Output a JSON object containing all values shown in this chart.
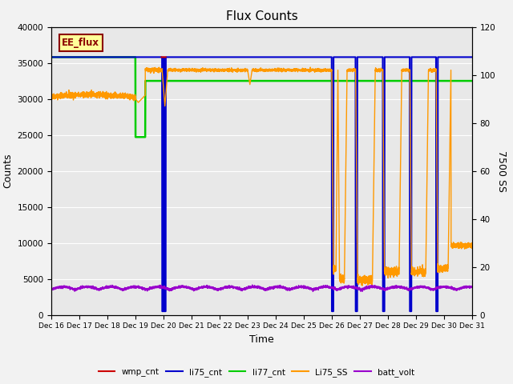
{
  "title": "Flux Counts",
  "xlabel": "Time",
  "ylabel_left": "Counts",
  "ylabel_right": "7500 SS",
  "ylim_left": [
    0,
    40000
  ],
  "ylim_right": [
    0,
    120
  ],
  "background_color": "#e8e8e8",
  "annotation_text": "EE_flux",
  "annotation_color": "#8B0000",
  "annotation_bg": "#ffff99",
  "xtick_labels": [
    "Dec 16",
    "Dec 17",
    "Dec 18",
    "Dec 19",
    "Dec 20",
    "Dec 21",
    "Dec 22",
    "Dec 23",
    "Dec 24",
    "Dec 25",
    "Dec 26",
    "Dec 27",
    "Dec 28",
    "Dec 29",
    "Dec 30",
    "Dec 31"
  ],
  "xtick_positions": [
    0,
    1,
    2,
    3,
    4,
    5,
    6,
    7,
    8,
    9,
    10,
    11,
    12,
    13,
    14,
    15
  ],
  "colors": {
    "wmp_cnt": "#cc0000",
    "li75_cnt": "#0000cc",
    "li77_cnt": "#00cc00",
    "Li75_SS": "#ff9900",
    "batt_volt": "#9900cc"
  },
  "figsize": [
    6.4,
    4.8
  ],
  "dpi": 100
}
